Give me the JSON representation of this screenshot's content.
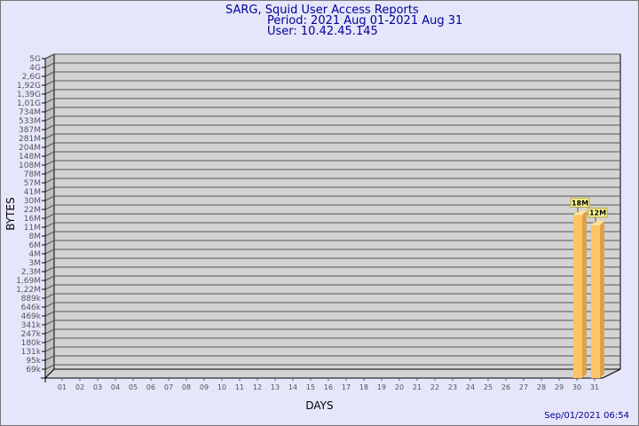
{
  "chart_data": {
    "type": "bar",
    "title": "SARG, Squid User Access Reports",
    "subtitle_period": "Period: 2021 Aug 01-2021 Aug 31",
    "subtitle_user": "User: 10.42.45.145",
    "xlabel": "DAYS",
    "ylabel": "BYTES",
    "footer": "Sep/01/2021 06:54",
    "y_ticks": [
      "69k",
      "95k",
      "131k",
      "180k",
      "247k",
      "341k",
      "469k",
      "646k",
      "889k",
      "1,22M",
      "1,69M",
      "2,3M",
      "3M",
      "4M",
      "6M",
      "8M",
      "11M",
      "16M",
      "22M",
      "30M",
      "41M",
      "57M",
      "78M",
      "108M",
      "148M",
      "204M",
      "281M",
      "387M",
      "533M",
      "734M",
      "1,01G",
      "1,39G",
      "1,92G",
      "2,6G",
      "4G",
      "5G"
    ],
    "y_tick_values": [
      69000,
      95000,
      131000,
      180000,
      247000,
      341000,
      469000,
      646000,
      889000,
      1220000,
      1690000,
      2300000,
      3000000,
      4000000,
      6000000,
      8000000,
      11000000,
      16000000,
      22000000,
      30000000,
      41000000,
      57000000,
      78000000,
      108000000,
      148000000,
      204000000,
      281000000,
      387000000,
      533000000,
      734000000,
      1010000000,
      1390000000,
      1920000000,
      2600000000,
      4000000000,
      5000000000
    ],
    "categories": [
      "01",
      "02",
      "03",
      "04",
      "05",
      "06",
      "07",
      "08",
      "09",
      "10",
      "11",
      "12",
      "13",
      "14",
      "15",
      "16",
      "17",
      "18",
      "19",
      "20",
      "21",
      "22",
      "23",
      "24",
      "25",
      "26",
      "27",
      "28",
      "29",
      "30",
      "31"
    ],
    "values": [
      null,
      null,
      null,
      null,
      null,
      null,
      null,
      null,
      null,
      null,
      null,
      null,
      null,
      null,
      null,
      null,
      null,
      null,
      null,
      null,
      null,
      null,
      null,
      null,
      null,
      null,
      null,
      null,
      null,
      18000000,
      12000000
    ],
    "data_labels": {
      "30": "18M",
      "31": "12M"
    },
    "grid": true,
    "colors": {
      "background": "#e6e6fa",
      "plot": "#d3d3d3",
      "grid": "#555555",
      "bar_front": "#ffc466",
      "bar_side": "#dca24a",
      "bar_top": "#ffe39a",
      "title": "#000099",
      "label_box": "#ffff99"
    }
  }
}
